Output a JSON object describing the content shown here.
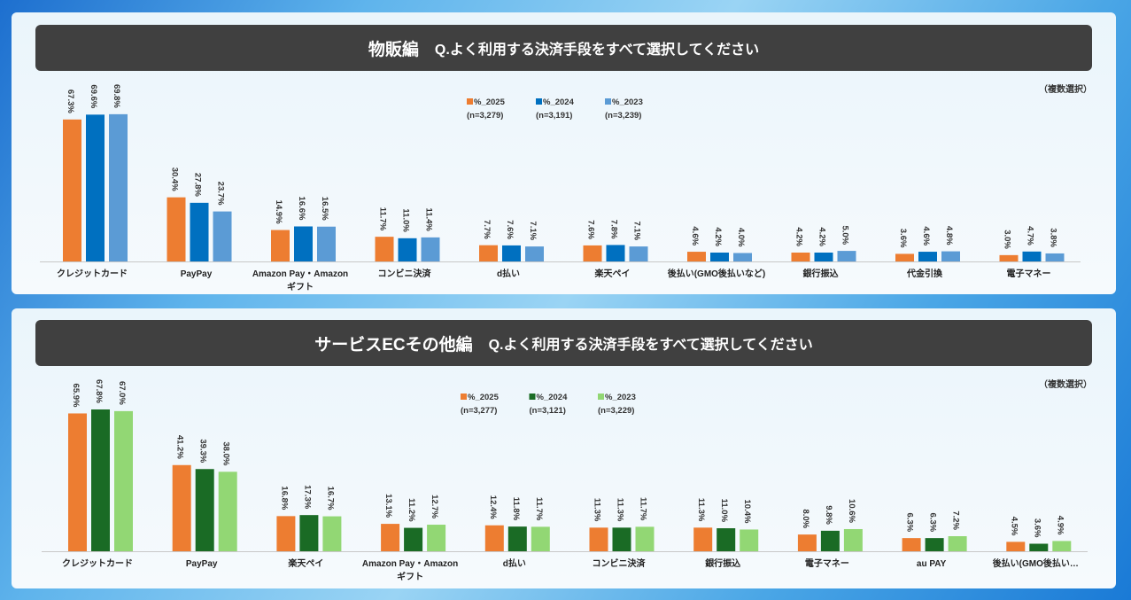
{
  "chart_data": [
    {
      "type": "bar",
      "title": "物販編",
      "question": "Q.よく利用する決済手段をすべて選択してください",
      "note": "（複数選択）",
      "categories": [
        "クレジットカード",
        "PayPay",
        "Amazon Pay・Amazonギフト",
        "コンビニ決済",
        "d払い",
        "楽天ペイ",
        "後払い(GMO後払いなど)",
        "銀行振込",
        "代金引換",
        "電子マネー"
      ],
      "series": [
        {
          "name": "%_2025",
          "n": "(n=3,279)",
          "color": "#ed7d31",
          "values": [
            67.3,
            30.4,
            14.9,
            11.7,
            7.7,
            7.6,
            4.6,
            4.2,
            3.6,
            3.0
          ]
        },
        {
          "name": "%_2024",
          "n": "(n=3,191)",
          "color": "#0070c0",
          "values": [
            69.6,
            27.8,
            16.6,
            11.0,
            7.6,
            7.8,
            4.2,
            4.2,
            4.6,
            4.7
          ]
        },
        {
          "name": "%_2023",
          "n": "(n=3,239)",
          "color": "#5b9bd5",
          "values": [
            69.8,
            23.7,
            16.5,
            11.4,
            7.1,
            7.1,
            4.0,
            5.0,
            4.8,
            3.8
          ]
        }
      ],
      "legend": "top-center",
      "grid": false,
      "ylim": [
        0,
        70
      ]
    },
    {
      "type": "bar",
      "title": "サービスECその他編",
      "question": "Q.よく利用する決済手段をすべて選択してください",
      "note": "（複数選択）",
      "categories": [
        "クレジットカード",
        "PayPay",
        "楽天ペイ",
        "Amazon Pay・Amazonギフト",
        "d払い",
        "コンビニ決済",
        "銀行振込",
        "電子マネー",
        "au PAY",
        "後払い(GMO後払い…"
      ],
      "series": [
        {
          "name": "%_2025",
          "n": "(n=3,277)",
          "color": "#ed7d31",
          "values": [
            65.9,
            41.2,
            16.8,
            13.1,
            12.4,
            11.3,
            11.3,
            8.0,
            6.3,
            4.5
          ]
        },
        {
          "name": "%_2024",
          "n": "(n=3,121)",
          "color": "#1a6b25",
          "values": [
            67.8,
            39.3,
            17.3,
            11.2,
            11.8,
            11.3,
            11.0,
            9.8,
            6.3,
            3.6
          ]
        },
        {
          "name": "%_2023",
          "n": "(n=3,229)",
          "color": "#92d774",
          "values": [
            67.0,
            38.0,
            16.7,
            12.7,
            11.7,
            11.7,
            10.4,
            10.6,
            7.2,
            4.9
          ]
        }
      ],
      "legend": "top-center",
      "grid": false,
      "ylim": [
        0,
        70
      ]
    }
  ]
}
